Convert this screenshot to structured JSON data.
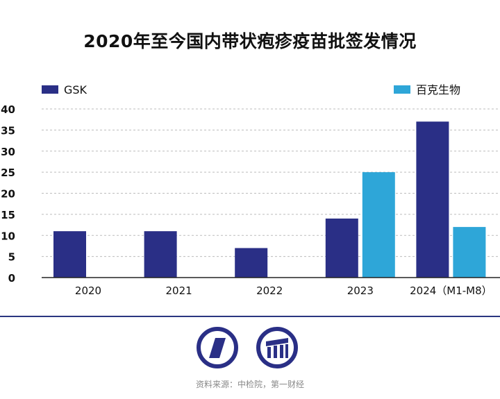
{
  "title": "2020年至今国内带状疱疹疫苗批签发情况",
  "source": "资料来源：中检院，第一财经",
  "colors": {
    "gsk": "#2a2f86",
    "baike": "#2ea6d8",
    "grid": "#bbbbbb",
    "divider": "#2a3580"
  },
  "chart_data": {
    "type": "bar",
    "title": "2020年至今国内带状疱疹疫苗批签发情况",
    "categories": [
      "2020",
      "2021",
      "2022",
      "2023",
      "2024（M1-M8）"
    ],
    "series": [
      {
        "name": "GSK",
        "color": "#2a2f86",
        "values": [
          11,
          11,
          7,
          14,
          37
        ]
      },
      {
        "name": "百克生物",
        "color": "#2ea6d8",
        "values": [
          0,
          0,
          0,
          25,
          12
        ]
      }
    ],
    "yticks": [
      "0",
      "5",
      "10",
      "15",
      "20",
      "25",
      "30",
      "35",
      "40"
    ],
    "ylim": [
      0,
      40
    ],
    "grid": true,
    "legend": "top"
  }
}
